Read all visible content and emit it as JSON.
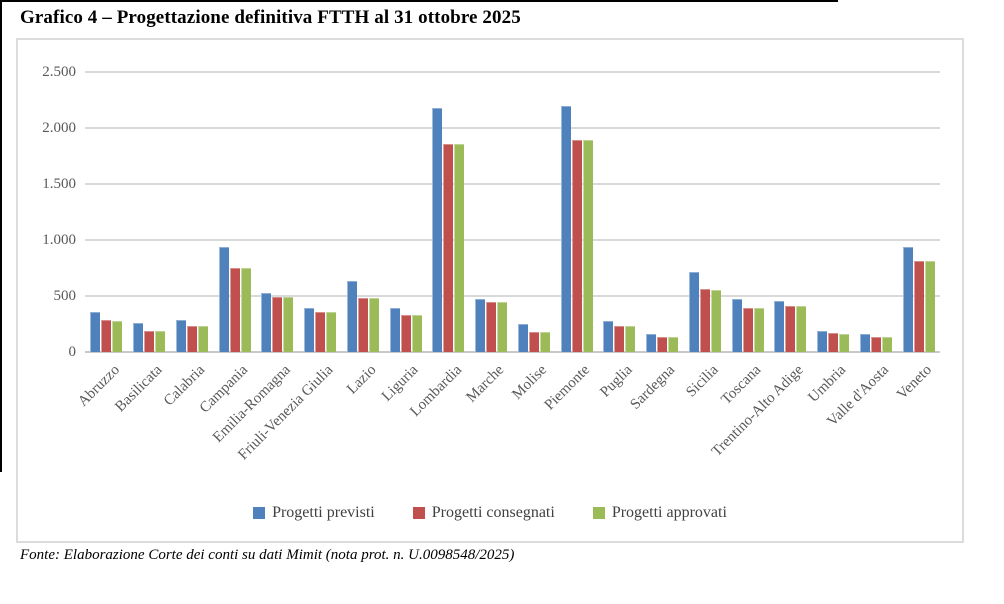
{
  "title": "Grafico 4 – Progettazione definitiva FTTH al 31 ottobre 2025",
  "source_note": "Fonte: Elaborazione Corte dei conti su dati Mimit (nota prot. n. U.0098548/2025)",
  "colors": {
    "previsti": "#4F81BD",
    "consegnati": "#C0504D",
    "approvati": "#9BBB59",
    "gridline": "#D9D9D9",
    "axis_text": "#595959"
  },
  "chart_data": {
    "type": "bar",
    "title": "Grafico 4 – Progettazione definitiva FTTH al 31 ottobre 2025",
    "xlabel": "",
    "ylabel": "",
    "ylim": [
      0,
      2500
    ],
    "yticks": [
      0,
      500,
      1000,
      1500,
      2000,
      2500
    ],
    "ytick_labels": [
      "0",
      "500",
      "1.000",
      "1.500",
      "2.000",
      "2.500"
    ],
    "grid": true,
    "legend_position": "bottom",
    "categories": [
      "Abruzzo",
      "Basilicata",
      "Calabria",
      "Campania",
      "Emilia-Romagna",
      "Friuli-Venezia Giulia",
      "Lazio",
      "Liguria",
      "Lombardia",
      "Marche",
      "Molise",
      "Piemonte",
      "Puglia",
      "Sardegna",
      "Sicilia",
      "Toscana",
      "Trentino-Alto Adige",
      "Umbria",
      "Valle d'Aosta",
      "Veneto"
    ],
    "series": [
      {
        "name": "Progetti previsti",
        "color": "#4F81BD",
        "values": [
          355,
          260,
          285,
          935,
          530,
          390,
          635,
          390,
          2180,
          470,
          250,
          2195,
          280,
          160,
          710,
          470,
          455,
          185,
          160,
          935
        ]
      },
      {
        "name": "Progetti consegnati",
        "color": "#C0504D",
        "values": [
          285,
          185,
          235,
          750,
          495,
          360,
          480,
          330,
          1855,
          450,
          180,
          1890,
          230,
          135,
          560,
          395,
          415,
          170,
          135,
          815
        ]
      },
      {
        "name": "Progetti approvati",
        "color": "#9BBB59",
        "values": [
          280,
          185,
          235,
          750,
          495,
          360,
          480,
          330,
          1855,
          450,
          180,
          1890,
          230,
          135,
          555,
          390,
          410,
          165,
          135,
          815
        ]
      }
    ]
  }
}
